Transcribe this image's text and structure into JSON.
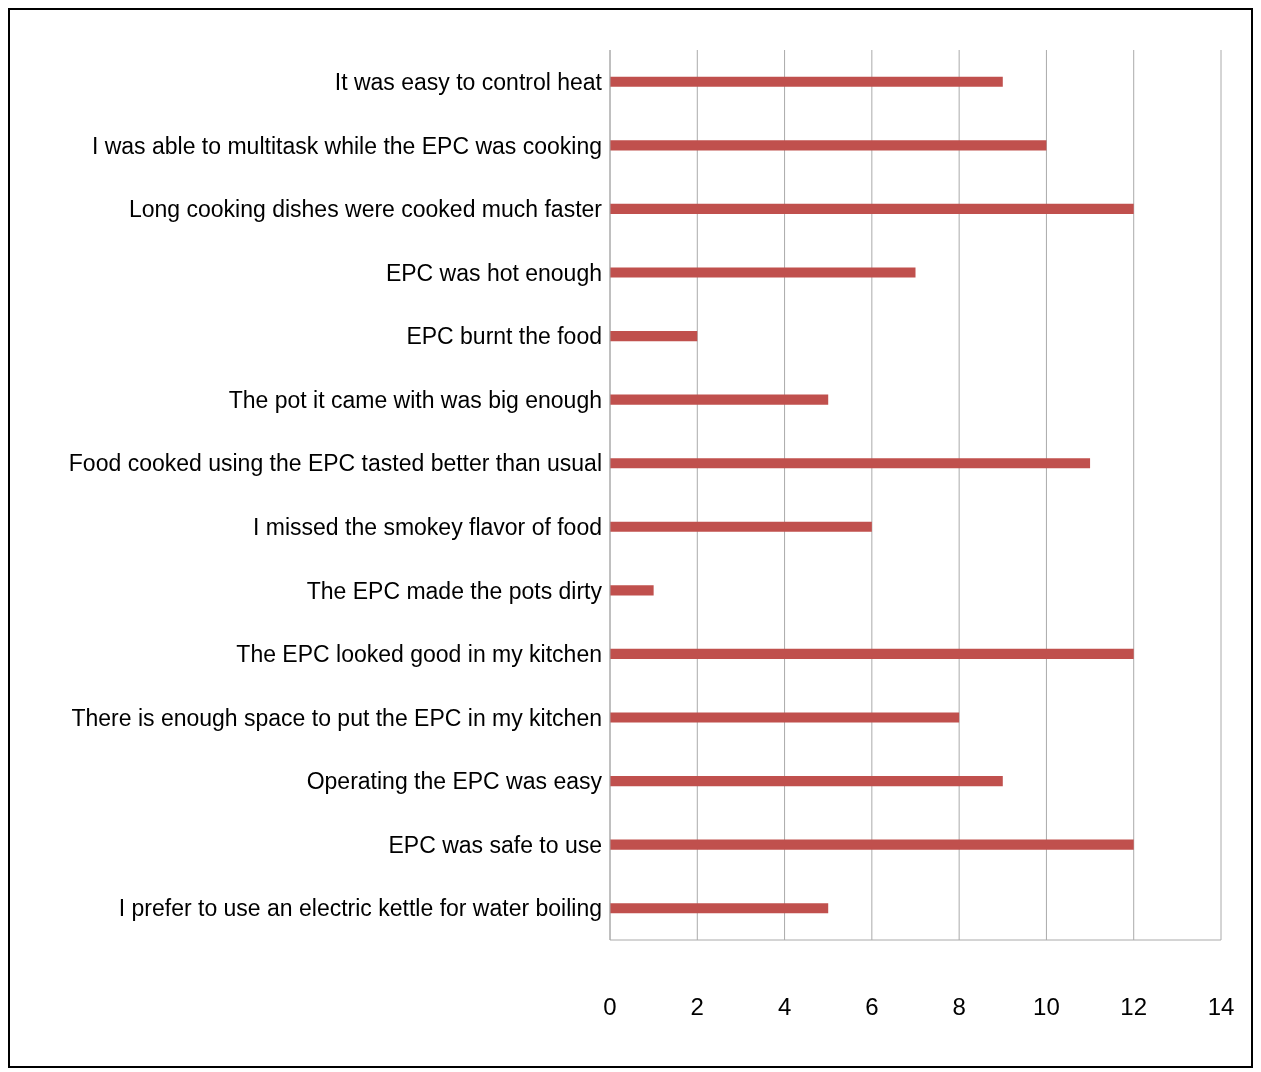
{
  "chart_data": {
    "type": "bar",
    "orientation": "horizontal",
    "categories": [
      "It was easy to control heat",
      "I was able to multitask while the EPC was cooking",
      "Long cooking dishes were cooked much faster",
      "EPC was hot enough",
      "EPC burnt the food",
      "The pot it came with was big enough",
      "Food cooked using the EPC tasted better than usual",
      "I missed the smokey flavor of food",
      "The EPC made the pots dirty",
      "The EPC looked good in my kitchen",
      "There is enough space to put the EPC in my kitchen",
      "Operating the EPC was easy",
      "EPC was safe to use",
      "I prefer to use an electric kettle for water boiling"
    ],
    "values": [
      9,
      10,
      12,
      7,
      2,
      5,
      11,
      6,
      1,
      12,
      8,
      9,
      12,
      5
    ],
    "color": "#c0504d",
    "xlim": [
      0,
      14
    ],
    "xticks": [
      0,
      2,
      4,
      6,
      8,
      10,
      12,
      14
    ],
    "grid": "x",
    "legend": false
  }
}
